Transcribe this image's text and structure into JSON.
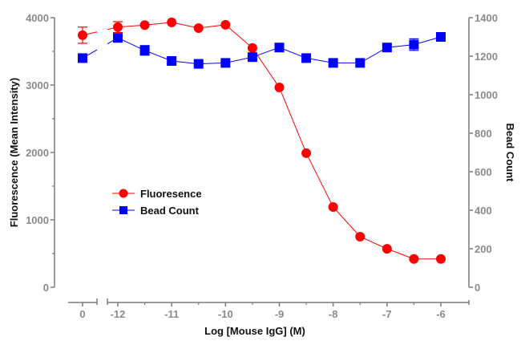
{
  "chart_data": {
    "type": "line",
    "title": "",
    "xlabel": "Log [Mouse IgG] (M)",
    "ylabel": "Fluorescence (Mean Intensity)",
    "y2label": "Bead Count",
    "x": [
      0,
      -12,
      -11.5,
      -11,
      -10.5,
      -10,
      -9.5,
      -9,
      -8.5,
      -8,
      -7.5,
      -7,
      -6.5,
      -6
    ],
    "x_tick_labels": [
      "0",
      "-12",
      "-11",
      "-10",
      "-9",
      "-8",
      "-7",
      "-6"
    ],
    "x_tick_values": [
      0,
      -12,
      -11,
      -10,
      -9,
      -8,
      -7,
      -6
    ],
    "x_broken_axis": true,
    "ylim": [
      0,
      4000
    ],
    "y_ticks": [
      0,
      1000,
      2000,
      3000,
      4000
    ],
    "y_tick_labels": [
      "0",
      "1000",
      "2000",
      "3000",
      "4000"
    ],
    "y2lim": [
      0,
      1400
    ],
    "y2_ticks": [
      0,
      200,
      400,
      600,
      800,
      1000,
      1200,
      1400
    ],
    "y2_tick_labels": [
      "0",
      "200",
      "400",
      "600",
      "800",
      "1000",
      "1200",
      "1400"
    ],
    "grid": false,
    "legend_position": "center-left",
    "series": [
      {
        "name": "Fluoresence",
        "axis": "left",
        "color": "#ff0000",
        "marker": "circle",
        "values": [
          3740,
          3860,
          3890,
          3930,
          3845,
          3895,
          3550,
          2965,
          1990,
          1190,
          750,
          570,
          420,
          420
        ],
        "errors": [
          120,
          80,
          0,
          0,
          0,
          0,
          0,
          0,
          0,
          0,
          0,
          0,
          0,
          0
        ]
      },
      {
        "name": "Bead Count",
        "axis": "right",
        "color": "#0000ff",
        "marker": "square",
        "values": [
          1190,
          1295,
          1230,
          1175,
          1160,
          1165,
          1195,
          1245,
          1190,
          1165,
          1165,
          1245,
          1260,
          1300
        ],
        "errors": [
          0,
          0,
          25,
          15,
          0,
          0,
          0,
          0,
          0,
          0,
          0,
          0,
          30,
          15
        ]
      }
    ]
  }
}
